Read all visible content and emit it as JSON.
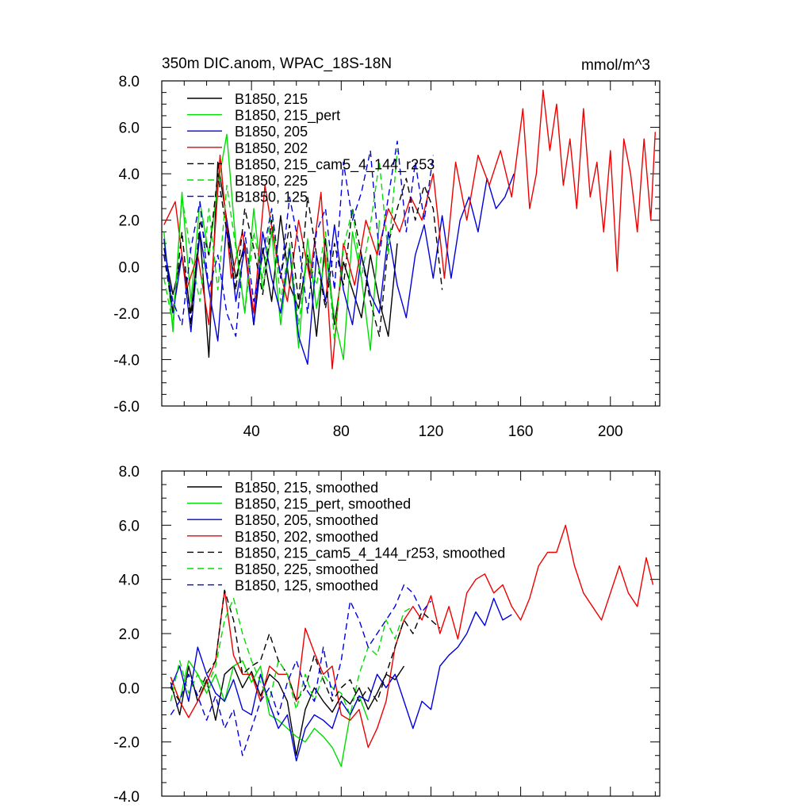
{
  "chart_data": [
    {
      "type": "line",
      "title": "350m DIC.anom, WPAC_18S-18N",
      "units_label": "mmol/m^3",
      "xlabel": "",
      "ylabel": "",
      "xlim": [
        0,
        222
      ],
      "ylim": [
        -6.0,
        8.0
      ],
      "xticks": [
        40,
        80,
        120,
        160,
        200
      ],
      "xtick_labels": [
        "40",
        "80",
        "120",
        "160",
        "200"
      ],
      "yticks": [
        -6,
        -4,
        -2,
        0,
        2,
        4,
        6,
        8
      ],
      "ytick_labels": [
        "-6.0",
        "-4.0",
        "-2.0",
        "0.0",
        "2.0",
        "4.0",
        "6.0",
        "8.0"
      ],
      "legend_location": "top-left",
      "series": [
        {
          "name": "B1850, 215",
          "color": "#000000",
          "dash": "solid",
          "x": [
            1,
            5,
            9,
            13,
            17,
            21,
            25,
            29,
            33,
            37,
            41,
            45,
            49,
            53,
            57,
            61,
            65,
            69,
            73,
            77,
            81,
            85,
            89,
            93,
            97,
            101,
            105
          ],
          "y": [
            0.8,
            -1.2,
            0.5,
            -2.0,
            1.5,
            -3.9,
            4.5,
            2.0,
            -0.5,
            1.0,
            -2.5,
            0.8,
            -1.5,
            2.2,
            -0.8,
            -1.8,
            0.5,
            -3.0,
            1.2,
            -2.5,
            0.2,
            -1.0,
            -2.2,
            0.5,
            -1.5,
            -3.0,
            1.0
          ]
        },
        {
          "name": "B1850, 215_pert",
          "color": "#00dd00",
          "dash": "solid",
          "x": [
            1,
            5,
            9,
            13,
            17,
            21,
            25,
            29,
            33,
            37,
            41,
            45,
            49,
            53,
            57,
            61,
            65,
            69,
            73,
            77,
            81,
            85,
            89,
            93,
            97
          ],
          "y": [
            1.5,
            -2.8,
            3.2,
            -1.5,
            2.8,
            0.5,
            3.5,
            5.7,
            1.0,
            -2.0,
            2.5,
            -1.0,
            1.5,
            -2.5,
            0.8,
            -3.5,
            1.2,
            -1.8,
            0.5,
            -2.2,
            -4.0,
            1.5,
            -0.5,
            -3.6,
            2.0
          ]
        },
        {
          "name": "B1850, 205",
          "color": "#0000dd",
          "dash": "solid",
          "x": [
            1,
            5,
            9,
            13,
            17,
            21,
            25,
            29,
            33,
            37,
            41,
            45,
            49,
            53,
            57,
            61,
            65,
            69,
            73,
            77,
            81,
            85,
            89,
            93,
            97,
            101,
            105,
            109,
            113,
            117,
            121,
            125,
            129,
            133,
            137,
            141,
            145,
            149,
            153,
            157
          ],
          "y": [
            1.2,
            -2.0,
            0.5,
            -2.8,
            1.5,
            -1.0,
            -3.2,
            2.0,
            -1.5,
            0.8,
            -2.5,
            1.5,
            -0.5,
            -2.0,
            0.8,
            -3.0,
            -4.2,
            0.5,
            -1.5,
            1.8,
            -1.0,
            -2.5,
            0.5,
            -1.2,
            -2.0,
            1.5,
            -0.8,
            -2.2,
            0.5,
            1.8,
            -0.5,
            2.2,
            -0.5,
            2.0,
            3.0,
            1.5,
            3.8,
            2.5,
            3.0,
            4.0
          ]
        },
        {
          "name": "B1850, 202",
          "color": "#ee0000",
          "dash": "solid",
          "x": [
            1,
            6,
            11,
            16,
            21,
            26,
            31,
            36,
            41,
            46,
            51,
            56,
            61,
            66,
            71,
            76,
            81,
            86,
            91,
            96,
            101,
            106,
            111,
            116,
            121,
            126,
            131,
            136,
            141,
            146,
            151,
            156,
            161,
            164,
            167,
            170,
            173,
            176,
            179,
            182,
            185,
            188,
            191,
            194,
            197,
            200,
            203,
            206,
            209,
            212,
            215,
            218,
            220
          ],
          "y": [
            1.8,
            2.8,
            -1.0,
            0.5,
            -2.5,
            4.8,
            -0.5,
            1.5,
            -2.0,
            3.5,
            0.5,
            -1.5,
            2.0,
            -0.5,
            3.2,
            -4.4,
            1.0,
            -0.8,
            2.0,
            0.5,
            2.5,
            1.5,
            3.0,
            2.0,
            4.0,
            -0.5,
            4.5,
            2.0,
            4.8,
            3.5,
            5.0,
            3.0,
            6.8,
            2.5,
            4.0,
            7.6,
            5.0,
            7.0,
            3.5,
            5.5,
            2.5,
            6.8,
            3.0,
            4.5,
            1.5,
            5.0,
            -0.2,
            5.5,
            4.0,
            1.5,
            5.5,
            2.0,
            5.8
          ]
        },
        {
          "name": "B1850, 215_cam5_4_144_r253",
          "color": "#000000",
          "dash": "dash",
          "x": [
            1,
            5,
            9,
            13,
            17,
            21,
            25,
            29,
            33,
            37,
            41,
            45,
            49,
            53,
            57,
            61,
            65,
            69,
            73,
            77,
            81,
            85,
            89,
            93,
            97,
            101,
            105,
            109,
            113,
            117,
            121,
            125
          ],
          "y": [
            0.5,
            -2.0,
            1.5,
            -2.5,
            2.0,
            0.5,
            4.0,
            1.5,
            -1.0,
            2.5,
            0.8,
            -1.2,
            2.0,
            -0.5,
            1.8,
            -1.5,
            3.0,
            0.5,
            -1.8,
            1.0,
            -0.8,
            2.5,
            0.5,
            -1.5,
            -3.0,
            1.0,
            2.5,
            3.8,
            2.0,
            3.5,
            2.5,
            -1.0
          ]
        },
        {
          "name": "B1850, 225",
          "color": "#00dd00",
          "dash": "dash",
          "x": [
            1,
            5,
            9,
            13,
            17,
            21,
            25,
            29,
            33,
            37,
            41,
            45,
            49,
            53,
            57,
            61,
            65,
            69,
            73,
            77,
            81,
            85,
            89,
            93,
            97,
            101,
            105
          ],
          "y": [
            -0.5,
            -2.5,
            3.0,
            0.5,
            -1.5,
            2.5,
            -1.0,
            3.5,
            0.8,
            -2.0,
            1.5,
            -0.5,
            2.5,
            -1.5,
            1.0,
            -2.5,
            0.5,
            -0.8,
            1.5,
            -3.2,
            0.8,
            2.5,
            -0.5,
            1.8,
            4.5,
            0.5,
            5.0
          ]
        },
        {
          "name": "B1850, 125",
          "color": "#0000dd",
          "dash": "dash",
          "x": [
            1,
            5,
            9,
            13,
            17,
            21,
            25,
            29,
            33,
            37,
            41,
            45,
            49,
            53,
            57,
            61,
            65,
            69,
            73,
            77,
            81,
            85,
            89,
            93,
            97,
            101,
            105,
            109,
            113,
            117,
            121
          ],
          "y": [
            0.5,
            -1.5,
            -2.5,
            0.8,
            2.8,
            -1.0,
            0.5,
            -2.0,
            -3.0,
            1.5,
            -1.5,
            0.5,
            2.5,
            -0.5,
            3.0,
            1.0,
            -2.0,
            1.5,
            2.5,
            -1.0,
            4.5,
            2.0,
            3.2,
            5.0,
            0.5,
            3.0,
            5.4,
            1.5,
            4.5,
            2.0,
            4.8
          ]
        }
      ]
    },
    {
      "type": "line",
      "title": "",
      "xlabel": "",
      "ylabel": "",
      "xlim": [
        0,
        222
      ],
      "ylim": [
        -4.0,
        8.0
      ],
      "xticks": [
        40,
        80,
        120,
        160,
        200
      ],
      "xtick_labels": [],
      "yticks": [
        -4,
        -2,
        0,
        2,
        4,
        6,
        8
      ],
      "ytick_labels": [
        "-4.0",
        "-2.0",
        "0.0",
        "2.0",
        "4.0",
        "6.0",
        "8.0"
      ],
      "legend_location": "top-left",
      "series": [
        {
          "name": "B1850, 215, smoothed",
          "color": "#000000",
          "dash": "solid",
          "x": [
            4,
            8,
            12,
            16,
            20,
            24,
            28,
            32,
            36,
            40,
            44,
            48,
            52,
            56,
            60,
            64,
            68,
            72,
            76,
            80,
            84,
            88,
            92,
            96,
            100,
            104,
            108
          ],
          "y": [
            0.2,
            -1.0,
            0.8,
            -0.5,
            0.3,
            -1.2,
            0.5,
            0.8,
            0.0,
            0.6,
            -0.3,
            0.5,
            0.2,
            -0.5,
            -2.5,
            -0.8,
            0.0,
            -0.5,
            -0.9,
            -0.3,
            -0.6,
            0.0,
            -0.8,
            -0.2,
            0.5,
            0.3,
            0.8
          ]
        },
        {
          "name": "B1850, 215_pert, smoothed",
          "color": "#00dd00",
          "dash": "solid",
          "x": [
            4,
            8,
            12,
            16,
            20,
            24,
            28,
            32,
            36,
            40,
            44,
            48,
            52,
            56,
            60,
            64,
            68,
            72,
            76,
            80,
            84,
            88,
            92
          ],
          "y": [
            0.4,
            -0.5,
            1.0,
            0.5,
            -0.2,
            0.5,
            -0.5,
            0.8,
            1.0,
            0.2,
            0.8,
            -1.0,
            -1.2,
            -1.5,
            -1.8,
            -2.0,
            -1.5,
            -1.8,
            -2.2,
            -2.9,
            -1.0,
            -0.3,
            -1.2
          ]
        },
        {
          "name": "B1850, 205, smoothed",
          "color": "#0000dd",
          "dash": "solid",
          "x": [
            4,
            8,
            12,
            16,
            20,
            24,
            28,
            32,
            36,
            40,
            44,
            48,
            52,
            56,
            60,
            64,
            68,
            72,
            76,
            80,
            84,
            88,
            92,
            96,
            100,
            104,
            108,
            112,
            116,
            120,
            124,
            128,
            132,
            136,
            140,
            144,
            148,
            152,
            156
          ],
          "y": [
            0.0,
            0.8,
            -0.5,
            1.5,
            0.5,
            -0.2,
            -0.5,
            0.3,
            -0.8,
            -1.0,
            0.5,
            -0.6,
            -1.5,
            -1.0,
            -2.7,
            -1.5,
            -1.0,
            -1.2,
            -1.5,
            -0.5,
            -1.0,
            -0.3,
            -0.5,
            0.5,
            0.0,
            0.5,
            -0.5,
            -1.5,
            -0.5,
            -0.8,
            0.8,
            1.2,
            1.5,
            2.0,
            2.8,
            2.3,
            3.3,
            2.5,
            2.7
          ]
        },
        {
          "name": "B1850, 202, smoothed",
          "color": "#ee0000",
          "dash": "solid",
          "x": [
            4,
            8,
            12,
            16,
            20,
            24,
            28,
            32,
            36,
            40,
            44,
            48,
            52,
            56,
            60,
            64,
            68,
            72,
            76,
            80,
            84,
            88,
            92,
            96,
            100,
            104,
            108,
            112,
            116,
            120,
            124,
            128,
            132,
            136,
            140,
            144,
            148,
            152,
            156,
            160,
            164,
            168,
            172,
            176,
            180,
            184,
            188,
            192,
            196,
            200,
            204,
            208,
            212,
            216,
            219
          ],
          "y": [
            0.4,
            -0.5,
            -1.1,
            -0.5,
            0.2,
            1.0,
            3.6,
            1.2,
            0.5,
            0.5,
            -0.5,
            0.8,
            0.5,
            0.5,
            -0.5,
            2.2,
            1.3,
            0.5,
            0.8,
            -1.0,
            -1.2,
            -0.8,
            -2.2,
            -1.5,
            -0.5,
            1.5,
            2.5,
            3.0,
            2.5,
            3.4,
            2.0,
            3.0,
            1.8,
            3.5,
            4.0,
            4.2,
            3.5,
            3.8,
            3.0,
            2.5,
            3.3,
            4.5,
            5.0,
            5.0,
            6.0,
            4.5,
            3.5,
            3.0,
            2.5,
            3.5,
            4.5,
            3.5,
            3.0,
            4.8,
            3.8
          ]
        },
        {
          "name": "B1850, 215_cam5_4_144_r253, smoothed",
          "color": "#000000",
          "dash": "dash",
          "x": [
            4,
            8,
            12,
            16,
            20,
            24,
            28,
            32,
            36,
            40,
            44,
            48,
            52,
            56,
            60,
            64,
            68,
            72,
            76,
            80,
            84,
            88,
            92,
            96,
            100,
            104,
            108,
            112,
            116,
            120,
            124
          ],
          "y": [
            0.0,
            -0.5,
            0.5,
            -0.3,
            0.5,
            1.0,
            3.6,
            2.5,
            0.5,
            0.8,
            1.0,
            2.0,
            1.0,
            0.5,
            -0.5,
            0.0,
            1.2,
            0.3,
            -0.5,
            0.0,
            0.3,
            -0.5,
            0.0,
            -0.5,
            0.5,
            1.5,
            2.5,
            2.0,
            2.8,
            2.5,
            2.2
          ]
        },
        {
          "name": "B1850, 225, smoothed",
          "color": "#00dd00",
          "dash": "dash",
          "x": [
            4,
            8,
            12,
            16,
            20,
            24,
            28,
            32,
            36,
            40,
            44,
            48,
            52,
            56,
            60,
            64,
            68,
            72,
            76,
            80,
            84,
            88,
            92,
            96,
            100,
            104,
            108,
            112
          ],
          "y": [
            -0.5,
            1.0,
            -0.2,
            0.5,
            0.0,
            0.8,
            2.5,
            3.3,
            2.0,
            1.0,
            0.2,
            -0.5,
            1.0,
            0.5,
            -0.8,
            0.5,
            -0.5,
            0.5,
            0.0,
            -0.2,
            -1.0,
            0.5,
            1.5,
            1.2,
            2.5,
            1.8,
            2.8,
            3.0
          ]
        },
        {
          "name": "B1850, 125, smoothed",
          "color": "#0000dd",
          "dash": "dash",
          "x": [
            4,
            8,
            12,
            16,
            20,
            24,
            28,
            32,
            36,
            40,
            44,
            48,
            52,
            56,
            60,
            64,
            68,
            72,
            76,
            80,
            84,
            88,
            92,
            96,
            100,
            104,
            108,
            112,
            116,
            120
          ],
          "y": [
            -1.0,
            -0.5,
            0.5,
            -0.3,
            -1.2,
            -0.3,
            -1.5,
            -0.8,
            -2.5,
            -1.5,
            -0.5,
            0.0,
            -1.0,
            0.2,
            1.0,
            0.0,
            -0.5,
            1.5,
            -0.3,
            1.0,
            3.2,
            2.5,
            1.5,
            2.0,
            2.5,
            3.0,
            3.8,
            3.5,
            2.8,
            3.2
          ]
        }
      ]
    }
  ]
}
